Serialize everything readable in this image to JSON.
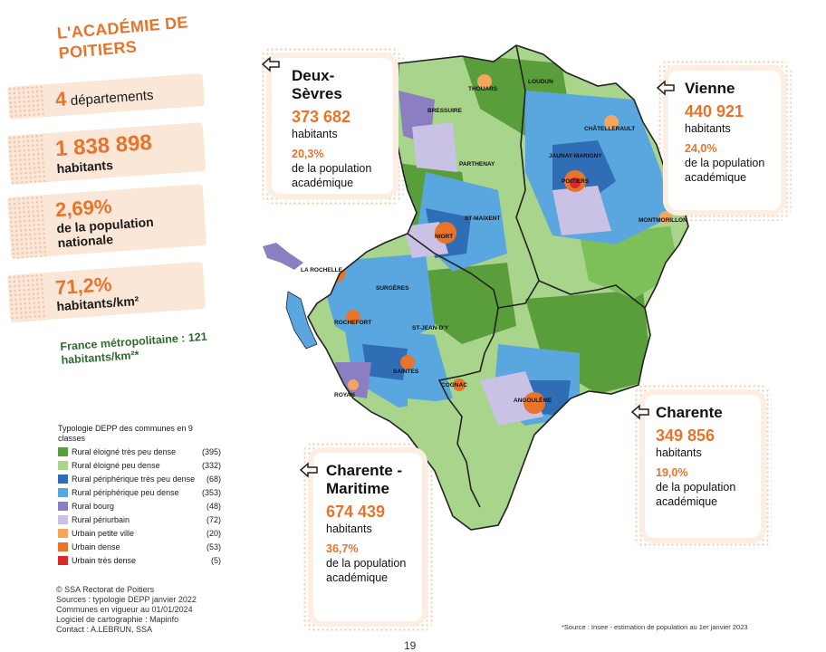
{
  "title": "L'ACADÉMIE DE POITIERS",
  "stats": [
    {
      "value": "4",
      "label": "départements"
    },
    {
      "value": "1 838 898",
      "label": "habitants"
    },
    {
      "value": "2,69%",
      "label": "de la population nationale"
    },
    {
      "value": "71,2%",
      "label": "habitants/km²"
    }
  ],
  "france_note": "France métropolitaine : 121 habitants/km²*",
  "legend": {
    "title": "Typologie DEPP des communes en 9 classes",
    "items": [
      {
        "label": "Rural éloigné très peu dense",
        "count": "(395)",
        "color": "#5a9e3c"
      },
      {
        "label": "Rural éloigné peu dense",
        "count": "(332)",
        "color": "#a8d58b"
      },
      {
        "label": "Rural périphérique très peu dense",
        "count": "(68)",
        "color": "#2f6db5"
      },
      {
        "label": "Rural périphérique peu dense",
        "count": "(353)",
        "color": "#5aa6de"
      },
      {
        "label": "Rural bourg",
        "count": "(48)",
        "color": "#8b7fc2"
      },
      {
        "label": "Rural périurbain",
        "count": "(72)",
        "color": "#c9c2e4"
      },
      {
        "label": "Urbain petite ville",
        "count": "(20)",
        "color": "#f2a65e"
      },
      {
        "label": "Urbain dense",
        "count": "(53)",
        "color": "#e8742b"
      },
      {
        "label": "Urbain très dense",
        "count": "(5)",
        "color": "#d62a2a"
      }
    ]
  },
  "credits": [
    "© SSA Rectorat de Poitiers",
    "Sources : typologie DEPP janvier 2022",
    "Communes en vigueur au 01/01/2024",
    "Logiciel de cartographie : Mapinfo",
    "Contact : A.LEBRUN, SSA"
  ],
  "source_note": "*Source : Insee - estimation de population au 1er janvier 2023",
  "page_number": "19",
  "departments": {
    "deux_sevres": {
      "name": "Deux-Sèvres",
      "population": "373 682",
      "unit": "habitants",
      "share": "20,3%",
      "share_text": "de la population académique"
    },
    "vienne": {
      "name": "Vienne",
      "population": "440 921",
      "unit": "habitants",
      "share": "24,0%",
      "share_text": "de la population académique"
    },
    "charente": {
      "name": "Charente",
      "population": "349 856",
      "unit": "habitants",
      "share": "19,0%",
      "share_text": "de la population académique"
    },
    "charente_maritime": {
      "name": "Charente - Maritime",
      "population": "674 439",
      "unit": "habitants",
      "share": "36,7%",
      "share_text": "de la population académique"
    }
  },
  "cities": [
    "THOUARS",
    "LOUDUN",
    "BRESSUIRE",
    "CHÂTELLERAULT",
    "JAUNAY-MARIGNY",
    "POITIERS",
    "PARTHENAY",
    "ST-MAIXENT",
    "NIORT",
    "MONTMORILLON",
    "LA ROCHELLE",
    "SURGÈRES",
    "ROCHEFORT",
    "ST-JEAN-D'Y",
    "SAINTES",
    "COGNAC",
    "ROYAN",
    "ANGOULÊME"
  ]
}
